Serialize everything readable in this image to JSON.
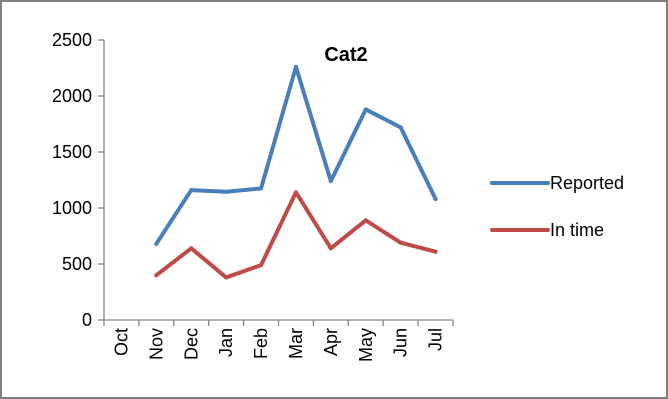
{
  "chart_data": {
    "type": "line",
    "title": "Cat2",
    "xlabel": "",
    "ylabel": "",
    "categories": [
      "Oct",
      "Nov",
      "Dec",
      "Jan",
      "Feb",
      "Mar",
      "Apr",
      "May",
      "Jun",
      "Jul"
    ],
    "ylim": [
      0,
      2500
    ],
    "yticks": [
      0,
      500,
      1000,
      1500,
      2000,
      2500
    ],
    "grid": false,
    "legend_position": "right",
    "series": [
      {
        "name": "Reported",
        "color": "#4a7ebb",
        "values": [
          null,
          680,
          1160,
          1145,
          1175,
          2260,
          1240,
          1880,
          1720,
          1080
        ]
      },
      {
        "name": "In time",
        "color": "#be4b48",
        "values": [
          null,
          400,
          640,
          380,
          490,
          1140,
          640,
          890,
          690,
          610
        ]
      }
    ]
  }
}
